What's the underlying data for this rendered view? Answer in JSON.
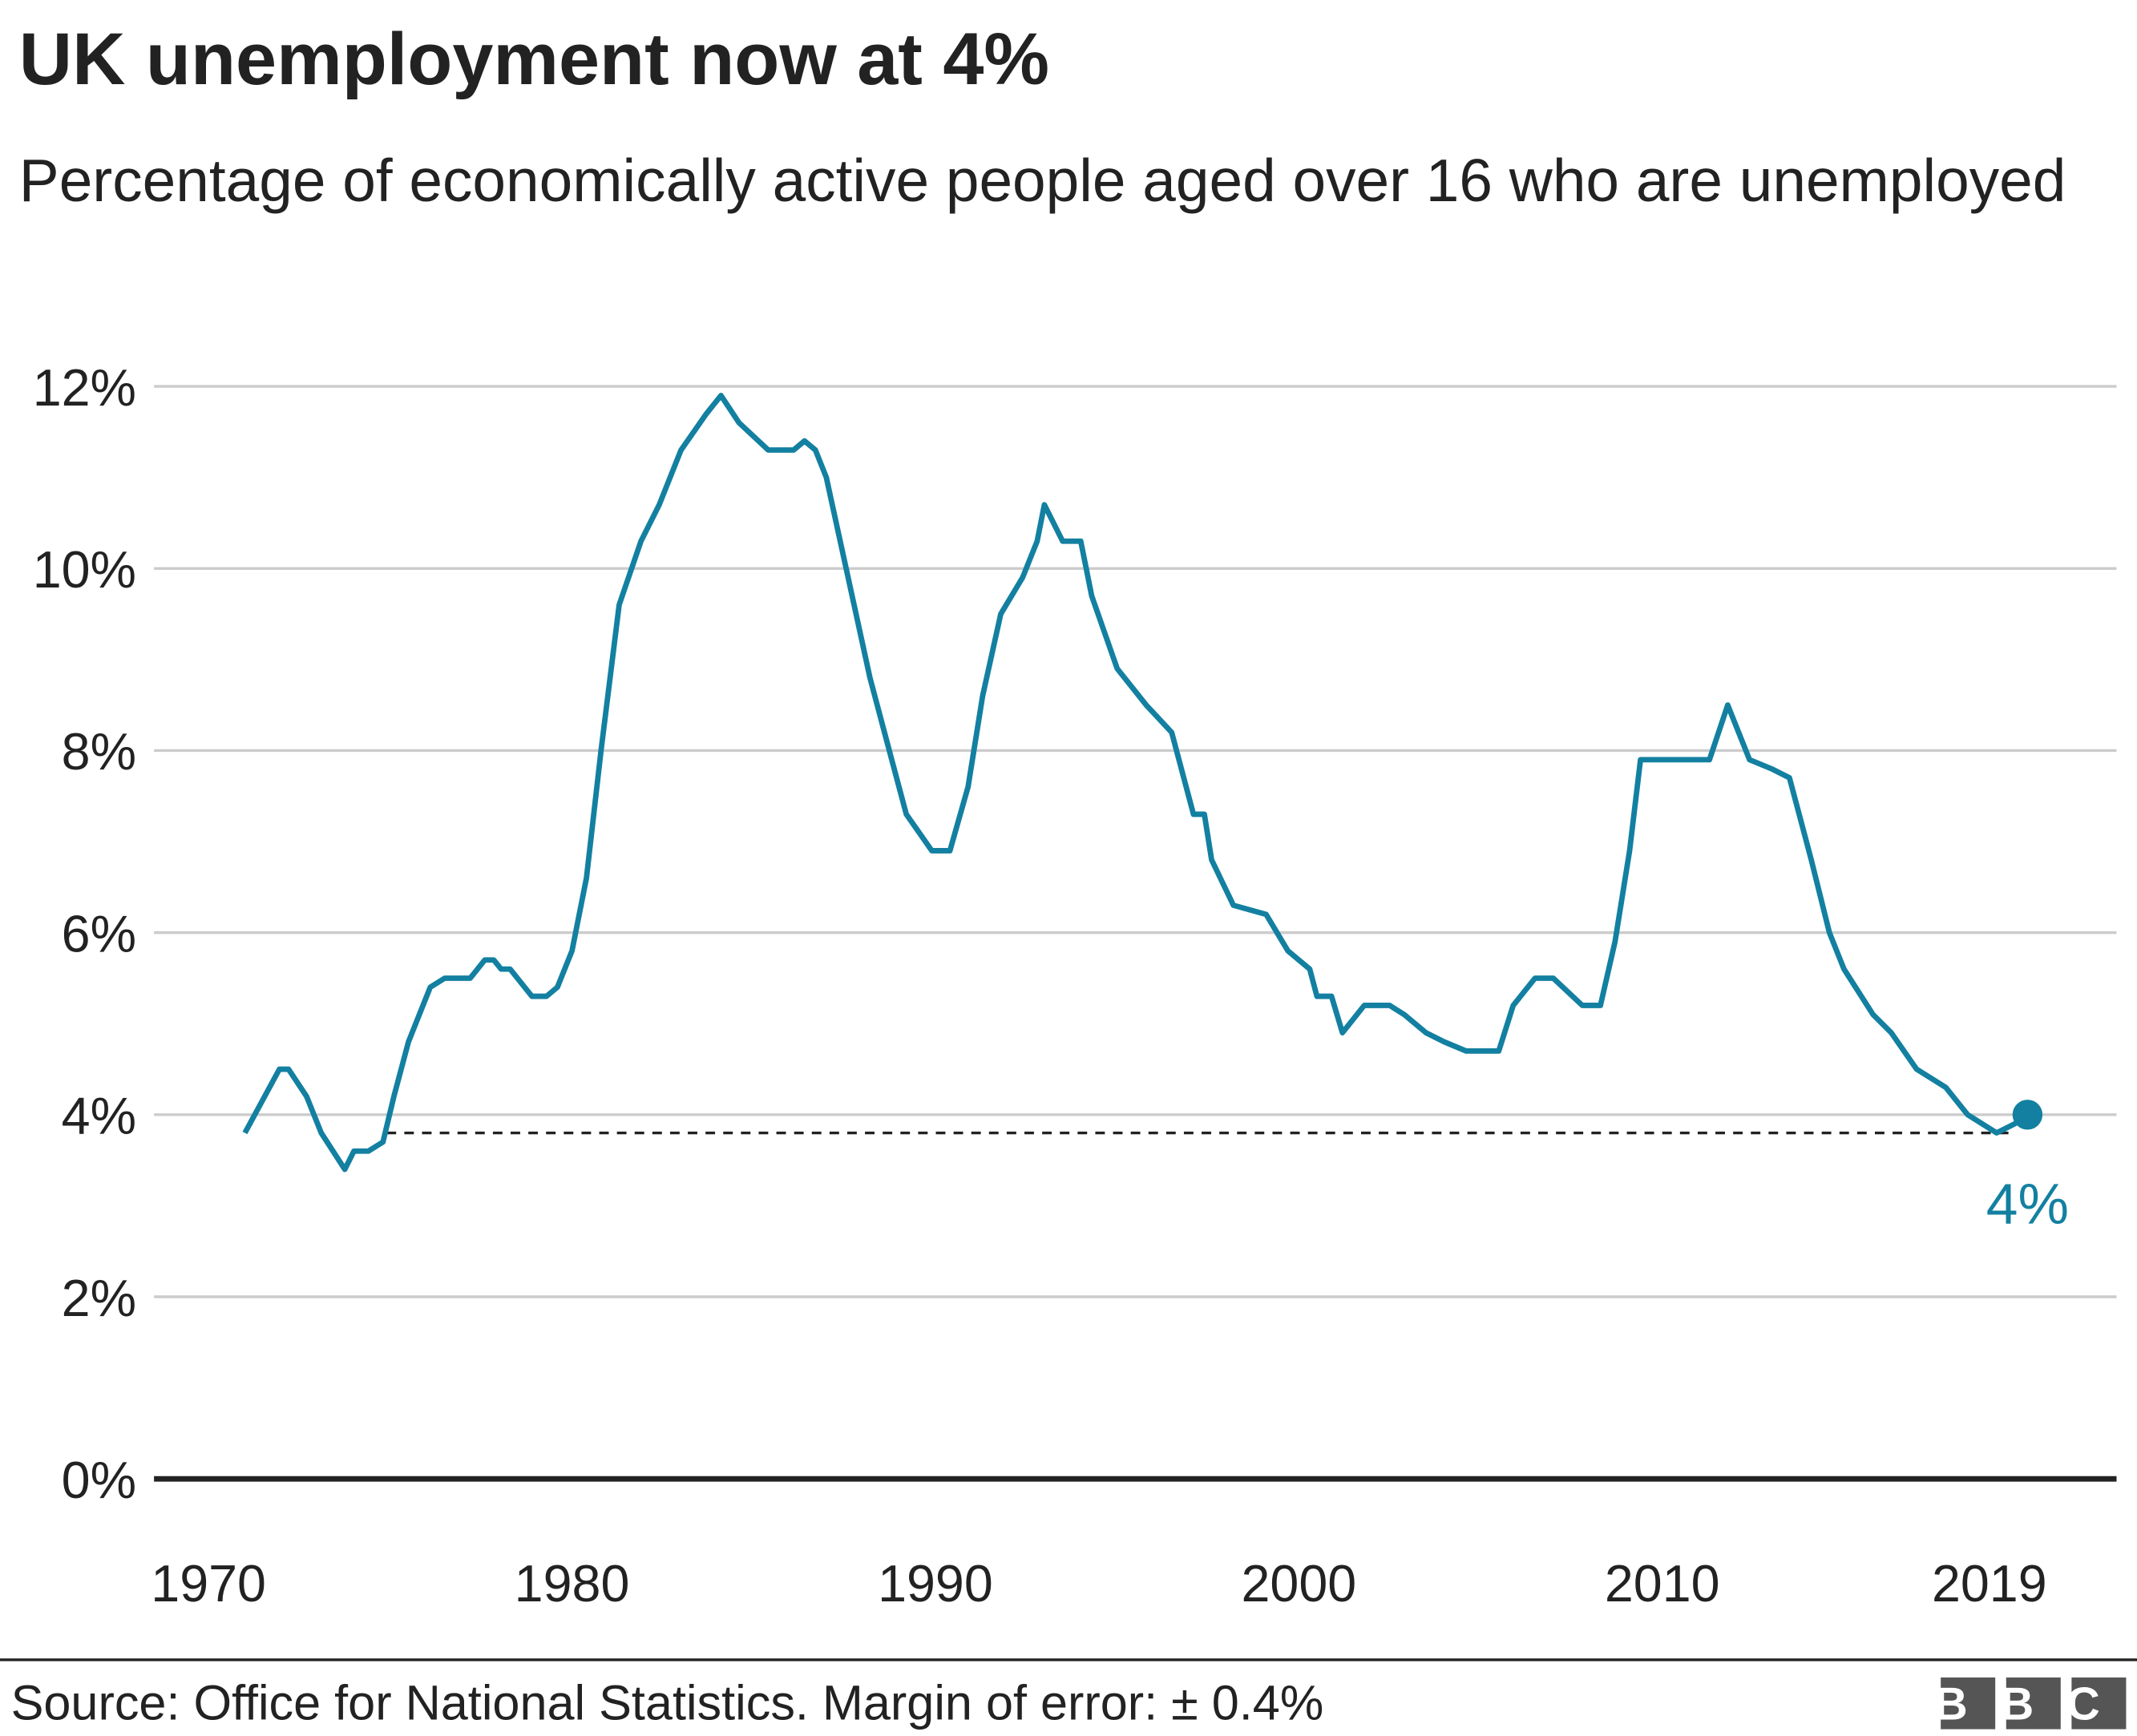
{
  "chart_data": {
    "type": "line",
    "title": "UK unemployment now at 4%",
    "subtitle": "Percentage of economically active people aged over 16 who are unemployed",
    "source": "Source: Office for National Statistics. Margin of error: ± 0.4%",
    "logo": "BBC",
    "annotation": "4%",
    "color": "#1380A1",
    "x": [
      1971.0,
      1971.95,
      1972.2,
      1972.7,
      1973.1,
      1973.75,
      1974.0,
      1974.4,
      1974.8,
      1975.1,
      1975.5,
      1976.1,
      1976.5,
      1977.2,
      1977.6,
      1977.85,
      1978.05,
      1978.3,
      1978.9,
      1979.3,
      1979.6,
      1980.0,
      1980.4,
      1980.8,
      1981.3,
      1981.9,
      1982.4,
      1983.0,
      1983.7,
      1984.1,
      1984.6,
      1985.4,
      1986.1,
      1986.4,
      1986.7,
      1987.0,
      1987.6,
      1988.2,
      1988.8,
      1989.2,
      1989.9,
      1990.4,
      1990.9,
      1991.3,
      1991.8,
      1992.4,
      1992.8,
      1993.0,
      1993.5,
      1994.0,
      1994.3,
      1995.0,
      1995.8,
      1996.5,
      1997.1,
      1997.4,
      1997.6,
      1998.2,
      1999.1,
      1999.7,
      2000.3,
      2000.5,
      2000.9,
      2001.2,
      2001.8,
      2002.5,
      2002.9,
      2003.5,
      2004.0,
      2004.6,
      2005.5,
      2005.9,
      2006.5,
      2007.0,
      2007.8,
      2008.3,
      2008.7,
      2009.1,
      2009.4,
      2010.2,
      2010.7,
      2011.3,
      2011.8,
      2012.4,
      2013.0,
      2013.5,
      2014.1,
      2014.6,
      2015.0,
      2015.8,
      2016.3,
      2017.0,
      2017.8,
      2018.4,
      2019.2,
      2019.7,
      2020.05
    ],
    "values": [
      3.8,
      4.5,
      4.5,
      4.2,
      3.8,
      3.4,
      3.6,
      3.6,
      3.7,
      4.2,
      4.8,
      5.4,
      5.5,
      5.5,
      5.7,
      5.7,
      5.6,
      5.6,
      5.3,
      5.3,
      5.4,
      5.8,
      6.6,
      8.0,
      9.6,
      10.3,
      10.7,
      11.3,
      11.7,
      11.9,
      11.6,
      11.3,
      11.3,
      11.4,
      11.3,
      11.0,
      9.9,
      8.8,
      7.9,
      7.3,
      6.9,
      6.9,
      7.6,
      8.6,
      9.5,
      9.9,
      10.3,
      10.7,
      10.3,
      10.3,
      9.7,
      8.9,
      8.5,
      8.2,
      7.3,
      7.3,
      6.8,
      6.3,
      6.2,
      5.8,
      5.6,
      5.3,
      5.3,
      4.9,
      5.2,
      5.2,
      5.1,
      4.9,
      4.8,
      4.7,
      4.7,
      5.2,
      5.5,
      5.5,
      5.2,
      5.2,
      5.9,
      6.9,
      7.9,
      7.9,
      7.9,
      7.9,
      8.5,
      7.9,
      7.8,
      7.7,
      6.8,
      6.0,
      5.6,
      5.1,
      4.9,
      4.5,
      4.3,
      4.0,
      3.8,
      3.9,
      4.0
    ],
    "reference_line": {
      "value": 3.8,
      "from": 1974.9,
      "to": 2019.6
    },
    "xlim": [
      1968.5,
      2022.5
    ],
    "xticks": [
      1970,
      1980,
      1990,
      2000,
      2010,
      2019
    ],
    "ylim": [
      0,
      12
    ],
    "yticks": [
      {
        "value": 0,
        "label": "0%"
      },
      {
        "value": 2,
        "label": "2%"
      },
      {
        "value": 4,
        "label": "4%"
      },
      {
        "value": 6,
        "label": "6%"
      },
      {
        "value": 8,
        "label": "8%"
      },
      {
        "value": 10,
        "label": "10%"
      },
      {
        "value": 12,
        "label": "12%"
      }
    ],
    "grid": true
  }
}
